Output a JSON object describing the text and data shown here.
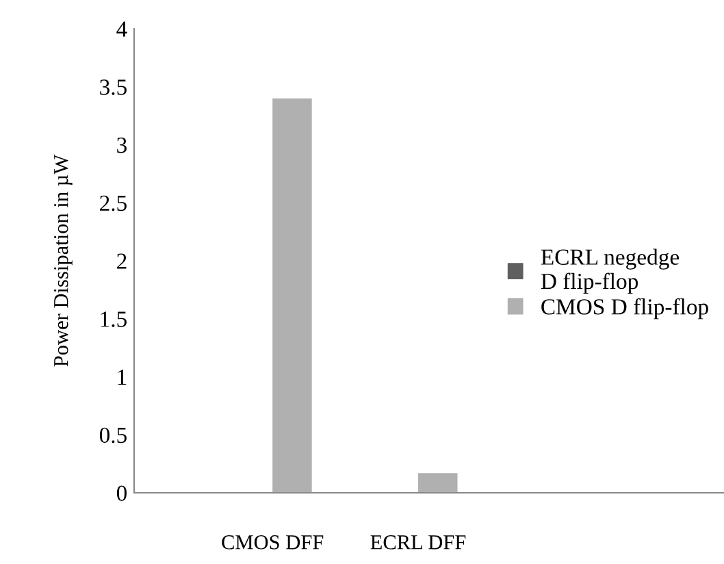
{
  "chart_data": {
    "type": "bar",
    "ylabel": "Power Dissipation in µW",
    "categories": [
      "CMOS DFF",
      "ECRL DFF"
    ],
    "series": [
      {
        "name": "ECRL negedge\nD flip-flop",
        "color": "#5f5f5f",
        "values": [
          null,
          null
        ]
      },
      {
        "name": "CMOS D flip-flop",
        "color": "#b0b0b0",
        "values": [
          3.4,
          0.17
        ]
      }
    ],
    "ylim": [
      0,
      4
    ],
    "yticks": [
      0,
      0.5,
      1,
      1.5,
      2,
      2.5,
      3,
      3.5,
      4
    ],
    "grid": false,
    "legend": "right"
  }
}
